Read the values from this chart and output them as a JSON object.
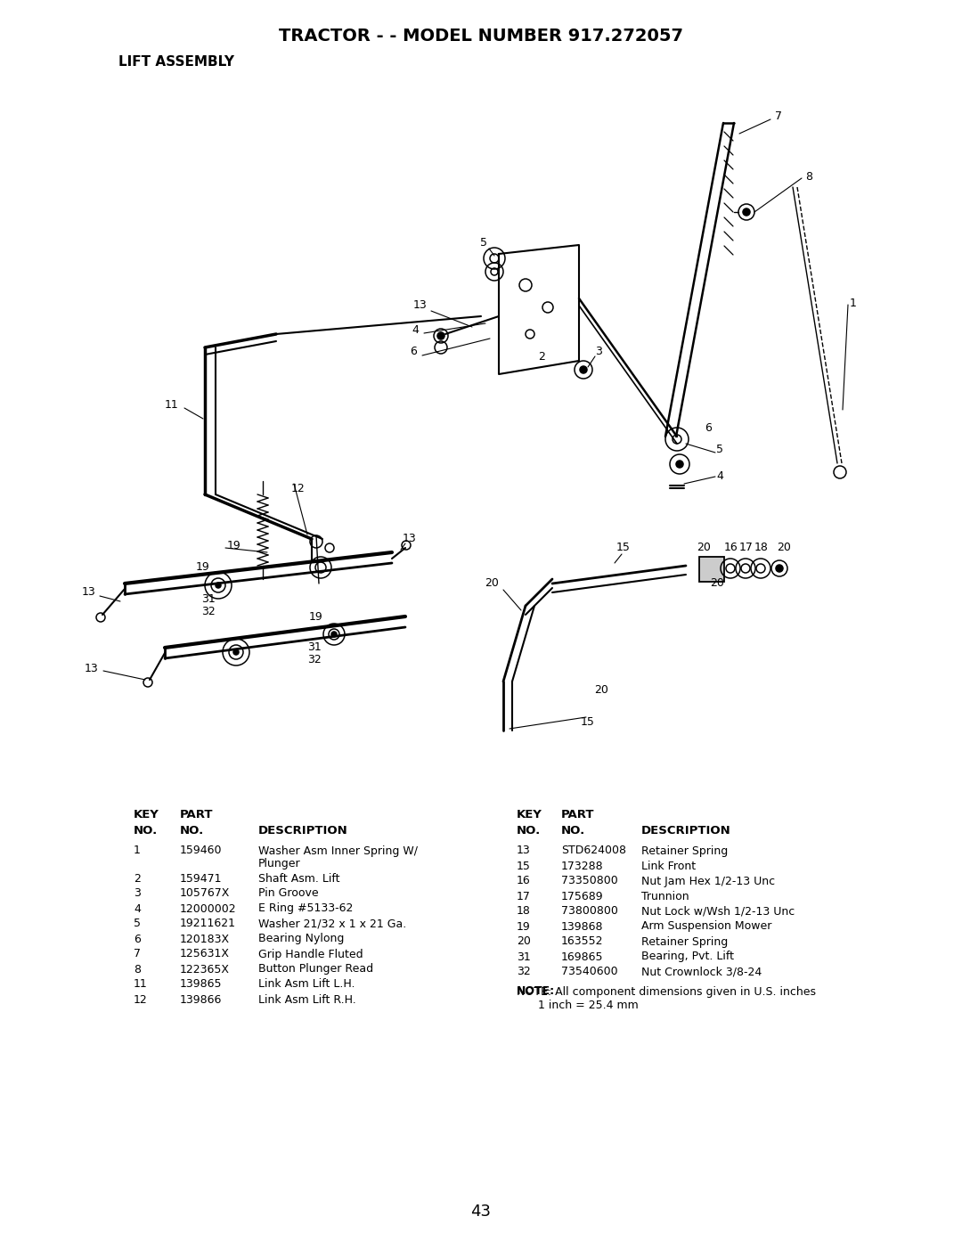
{
  "title": "TRACTOR - - MODEL NUMBER 917.272057",
  "subtitle": "LIFT ASSEMBLY",
  "page_number": "43",
  "background_color": "#ffffff",
  "title_fontsize": 14,
  "subtitle_fontsize": 11,
  "left_parts": [
    [
      "1",
      "159460",
      "Washer Asm Inner Spring W/",
      "Plunger"
    ],
    [
      "2",
      "159471",
      "Shaft Asm. Lift",
      ""
    ],
    [
      "3",
      "105767X",
      "Pin Groove",
      ""
    ],
    [
      "4",
      "12000002",
      "E Ring #5133-62",
      ""
    ],
    [
      "5",
      "19211621",
      "Washer 21/32 x 1 x 21 Ga.",
      ""
    ],
    [
      "6",
      "120183X",
      "Bearing Nylong",
      ""
    ],
    [
      "7",
      "125631X",
      "Grip Handle Fluted",
      ""
    ],
    [
      "8",
      "122365X",
      "Button Plunger Read",
      ""
    ],
    [
      "11",
      "139865",
      "Link Asm Lift L.H.",
      ""
    ],
    [
      "12",
      "139866",
      "Link Asm Lift R.H.",
      ""
    ]
  ],
  "right_parts": [
    [
      "13",
      "STD624008",
      "Retainer Spring"
    ],
    [
      "15",
      "173288",
      "Link Front"
    ],
    [
      "16",
      "73350800",
      "Nut Jam Hex 1/2-13 Unc"
    ],
    [
      "17",
      "175689",
      "Trunnion"
    ],
    [
      "18",
      "73800800",
      "Nut Lock w/Wsh 1/2-13 Unc"
    ],
    [
      "19",
      "139868",
      "Arm Suspension Mower"
    ],
    [
      "20",
      "163552",
      "Retainer Spring"
    ],
    [
      "31",
      "169865",
      "Bearing, Pvt. Lift"
    ],
    [
      "32",
      "73540600",
      "Nut Crownlock 3/8-24"
    ]
  ],
  "note_line1": "NOTE: All component dimensions given in U.S. inches",
  "note_line2": "      1 inch = 25.4 mm"
}
